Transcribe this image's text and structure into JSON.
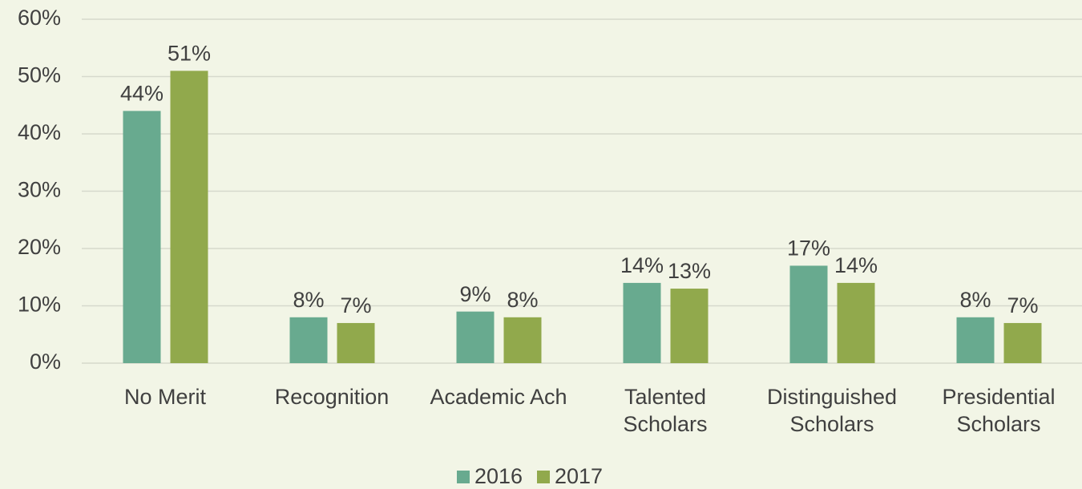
{
  "chart_data": {
    "type": "bar",
    "categories": [
      "No Merit",
      "Recognition",
      "Academic Ach",
      "Talented Scholars",
      "Distinguished Scholars",
      "Presidential Scholars"
    ],
    "series": [
      {
        "name": "2016",
        "color": "#68aa8f",
        "values": [
          44,
          8,
          9,
          14,
          17,
          8
        ],
        "value_labels": [
          "44%",
          "8%",
          "9%",
          "14%",
          "17%",
          "8%"
        ]
      },
      {
        "name": "2017",
        "color": "#91a94c",
        "values": [
          51,
          7,
          8,
          13,
          14,
          7
        ],
        "value_labels": [
          "51%",
          "7%",
          "8%",
          "13%",
          "14%",
          "7%"
        ]
      }
    ],
    "ylim": [
      0,
      60
    ],
    "yticks": [
      {
        "value": 0,
        "label": "0%"
      },
      {
        "value": 10,
        "label": "10%"
      },
      {
        "value": 20,
        "label": "20%"
      },
      {
        "value": 30,
        "label": "30%"
      },
      {
        "value": 40,
        "label": "40%"
      },
      {
        "value": 50,
        "label": "50%"
      },
      {
        "value": 60,
        "label": "60%"
      }
    ],
    "grid": true,
    "legend": "bottom"
  }
}
